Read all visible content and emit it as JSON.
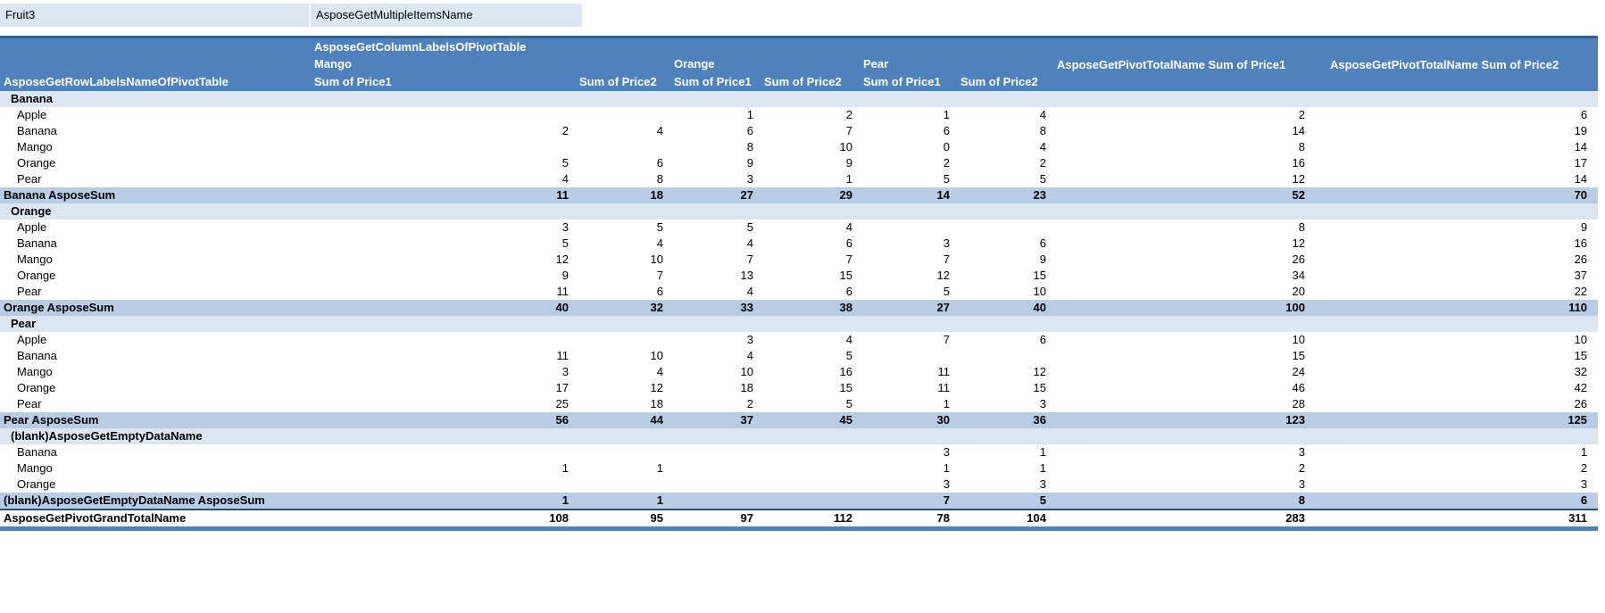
{
  "filter_bar": {
    "field": "Fruit3",
    "value": "AsposeGetMultipleItemsName"
  },
  "pivot": {
    "column_labels_title": "AsposeGetColumnLabelsOfPivotTable",
    "row_labels_title": "AsposeGetRowLabelsNameOfPivotTable",
    "column_groups": [
      {
        "label": "Mango",
        "columns": [
          "Sum of Price1",
          "Sum of Price2"
        ]
      },
      {
        "label": "Orange",
        "columns": [
          "Sum of Price1",
          "Sum of Price2"
        ]
      },
      {
        "label": "Pear",
        "columns": [
          "Sum of Price1",
          "Sum of Price2"
        ]
      }
    ],
    "total_columns": [
      "AsposeGetPivotTotalName Sum of Price1",
      "AsposeGetPivotTotalName Sum of Price2"
    ],
    "rows": [
      {
        "type": "group",
        "label": "Banana",
        "values": [
          "",
          "",
          "",
          "",
          "",
          "",
          "",
          ""
        ]
      },
      {
        "type": "item",
        "label": "Apple",
        "values": [
          "",
          "",
          1,
          2,
          1,
          4,
          2,
          6
        ]
      },
      {
        "type": "item",
        "label": "Banana",
        "values": [
          2,
          4,
          6,
          7,
          6,
          8,
          14,
          19
        ]
      },
      {
        "type": "item",
        "label": "Mango",
        "values": [
          "",
          "",
          8,
          10,
          0,
          4,
          8,
          14
        ]
      },
      {
        "type": "item",
        "label": "Orange",
        "values": [
          5,
          6,
          9,
          9,
          2,
          2,
          16,
          17
        ]
      },
      {
        "type": "item",
        "label": "Pear",
        "values": [
          4,
          8,
          3,
          1,
          5,
          5,
          12,
          14
        ]
      },
      {
        "type": "subtotal",
        "label": "Banana AsposeSum",
        "values": [
          11,
          18,
          27,
          29,
          14,
          23,
          52,
          70
        ]
      },
      {
        "type": "group",
        "label": "Orange",
        "values": [
          "",
          "",
          "",
          "",
          "",
          "",
          "",
          ""
        ]
      },
      {
        "type": "item",
        "label": "Apple",
        "values": [
          3,
          5,
          5,
          4,
          "",
          "",
          8,
          9
        ]
      },
      {
        "type": "item",
        "label": "Banana",
        "values": [
          5,
          4,
          4,
          6,
          3,
          6,
          12,
          16
        ]
      },
      {
        "type": "item",
        "label": "Mango",
        "values": [
          12,
          10,
          7,
          7,
          7,
          9,
          26,
          26
        ]
      },
      {
        "type": "item",
        "label": "Orange",
        "values": [
          9,
          7,
          13,
          15,
          12,
          15,
          34,
          37
        ]
      },
      {
        "type": "item",
        "label": "Pear",
        "values": [
          11,
          6,
          4,
          6,
          5,
          10,
          20,
          22
        ]
      },
      {
        "type": "subtotal",
        "label": "Orange AsposeSum",
        "values": [
          40,
          32,
          33,
          38,
          27,
          40,
          100,
          110
        ]
      },
      {
        "type": "group",
        "label": "Pear",
        "values": [
          "",
          "",
          "",
          "",
          "",
          "",
          "",
          ""
        ]
      },
      {
        "type": "item",
        "label": "Apple",
        "values": [
          "",
          "",
          3,
          4,
          7,
          6,
          10,
          10
        ]
      },
      {
        "type": "item",
        "label": "Banana",
        "values": [
          11,
          10,
          4,
          5,
          "",
          "",
          15,
          15
        ]
      },
      {
        "type": "item",
        "label": "Mango",
        "values": [
          3,
          4,
          10,
          16,
          11,
          12,
          24,
          32
        ]
      },
      {
        "type": "item",
        "label": "Orange",
        "values": [
          17,
          12,
          18,
          15,
          11,
          15,
          46,
          42
        ]
      },
      {
        "type": "item",
        "label": "Pear",
        "values": [
          25,
          18,
          2,
          5,
          1,
          3,
          28,
          26
        ]
      },
      {
        "type": "subtotal",
        "label": "Pear AsposeSum",
        "values": [
          56,
          44,
          37,
          45,
          30,
          36,
          123,
          125
        ]
      },
      {
        "type": "group",
        "label": "(blank)AsposeGetEmptyDataName",
        "values": [
          "",
          "",
          "",
          "",
          "",
          "",
          "",
          ""
        ]
      },
      {
        "type": "item",
        "label": "Banana",
        "values": [
          "",
          "",
          "",
          "",
          3,
          1,
          3,
          1
        ]
      },
      {
        "type": "item",
        "label": "Mango",
        "values": [
          1,
          1,
          "",
          "",
          1,
          1,
          2,
          2
        ]
      },
      {
        "type": "item",
        "label": "Orange",
        "values": [
          "",
          "",
          "",
          "",
          3,
          3,
          3,
          3
        ]
      },
      {
        "type": "subtotal",
        "label": "(blank)AsposeGetEmptyDataName AsposeSum",
        "values": [
          1,
          1,
          "",
          "",
          7,
          5,
          8,
          6
        ]
      },
      {
        "type": "grandtotal",
        "label": "AsposeGetPivotGrandTotalName",
        "values": [
          108,
          95,
          97,
          112,
          78,
          104,
          283,
          311
        ]
      }
    ]
  },
  "colors": {
    "header_bg": "#4F81BD",
    "header_top_border": "#35618F",
    "header_text": "#FFFFFF",
    "group_row_bg": "#DCE6F1",
    "subtotal_row_bg": "#B8CCE4",
    "filter_cell_bg": "#DCE6F1",
    "grandtotal_border_top": "#1F4E79",
    "grandtotal_border_bottom": "#4F81BD"
  }
}
